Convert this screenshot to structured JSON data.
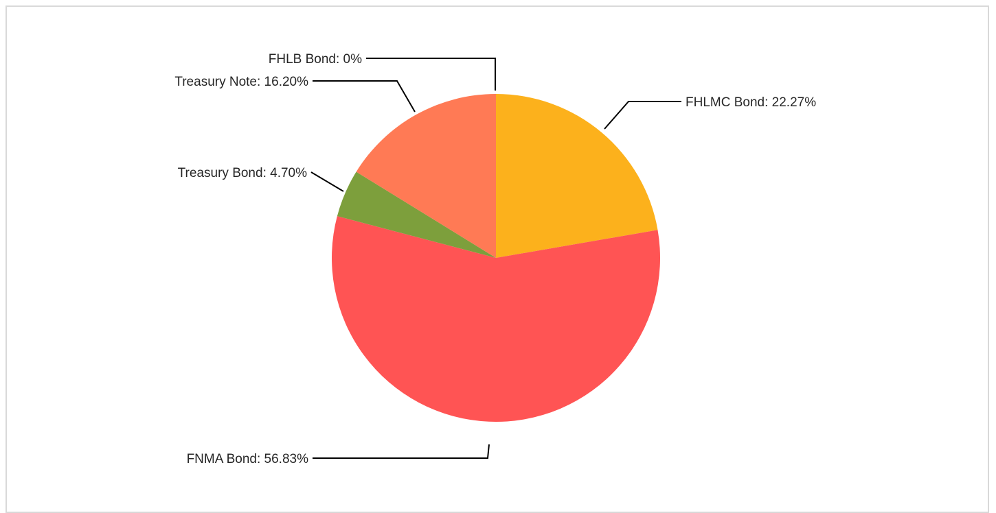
{
  "chart_data": {
    "type": "pie",
    "title": "",
    "legend": "none",
    "slices": [
      {
        "name": "FHLMC Bond",
        "value": 22.27,
        "label": "FHLMC Bond: 22.27%",
        "color": "#FCB11C"
      },
      {
        "name": "FNMA Bond",
        "value": 56.83,
        "label": "FNMA Bond: 56.83%",
        "color": "#FF5454"
      },
      {
        "name": "Treasury Bond",
        "value": 4.7,
        "label": "Treasury Bond: 4.70%",
        "color": "#7D9F3C"
      },
      {
        "name": "Treasury Note",
        "value": 16.2,
        "label": "Treasury Note: 16.20%",
        "color": "#FF7A55"
      },
      {
        "name": "FHLB Bond",
        "value": 0,
        "label": "FHLB Bond: 0%",
        "color": "#4472C4"
      }
    ]
  }
}
